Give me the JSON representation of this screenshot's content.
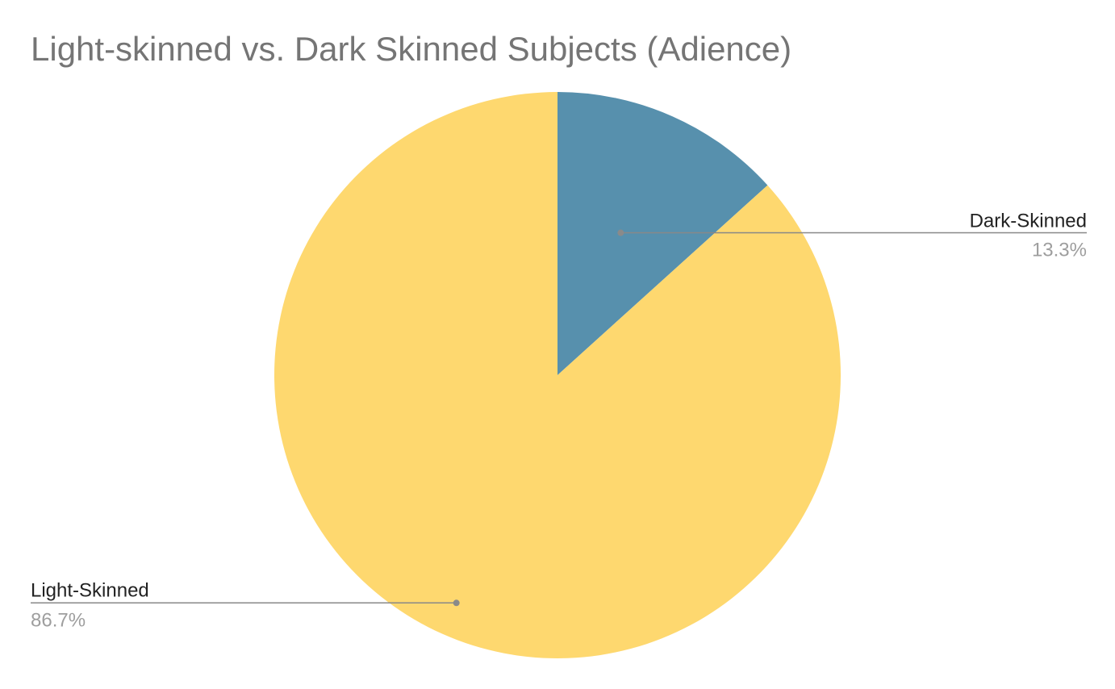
{
  "chart_data": {
    "type": "pie",
    "title": "Light-skinned vs. Dark Skinned Subjects (Adience)",
    "slices": [
      {
        "name": "Dark-Skinned",
        "value": 13.3,
        "label": "13.3%",
        "color": "#5790ad"
      },
      {
        "name": "Light-Skinned",
        "value": 86.7,
        "label": "86.7%",
        "color": "#fed86f"
      }
    ],
    "legend": "labels-on-leader-lines"
  }
}
